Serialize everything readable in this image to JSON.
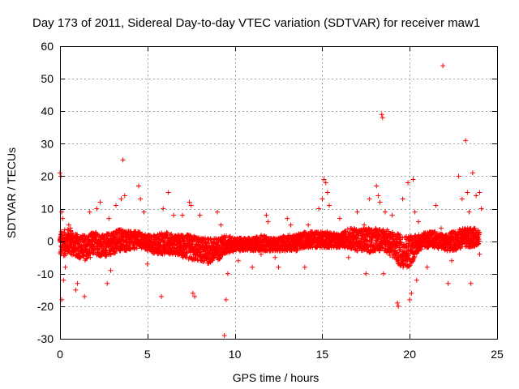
{
  "chart_data": {
    "type": "scatter",
    "title": "Day 173 of 2011, Sidereal Day-to-day VTEC variation (SDTVAR) for receiver maw1",
    "xlabel": "GPS time / hours",
    "ylabel": "SDTVAR / TECUs",
    "xlim": [
      0,
      25
    ],
    "ylim": [
      -30,
      60
    ],
    "xticks": [
      0,
      5,
      10,
      15,
      20,
      25
    ],
    "yticks": [
      -30,
      -20,
      -10,
      0,
      10,
      20,
      30,
      40,
      50,
      60
    ],
    "grid": true,
    "marker": "+",
    "color": "#ff0000",
    "series": [
      {
        "name": "SDTVAR",
        "dense_band": [
          [
            0.0,
            -5,
            3
          ],
          [
            0.5,
            -4,
            4
          ],
          [
            1.0,
            -5,
            2
          ],
          [
            1.5,
            -6,
            2
          ],
          [
            2.0,
            -4,
            3
          ],
          [
            2.5,
            -5,
            2
          ],
          [
            3.0,
            -4,
            3
          ],
          [
            3.5,
            -3,
            4
          ],
          [
            4.0,
            -3,
            3
          ],
          [
            4.5,
            -2,
            3
          ],
          [
            5.0,
            -3,
            2
          ],
          [
            5.5,
            -4,
            2
          ],
          [
            6.0,
            -4,
            3
          ],
          [
            6.5,
            -4,
            2
          ],
          [
            7.0,
            -5,
            2
          ],
          [
            7.5,
            -6,
            2
          ],
          [
            8.0,
            -6,
            1
          ],
          [
            8.5,
            -7,
            1
          ],
          [
            9.0,
            -6,
            1
          ],
          [
            9.5,
            -4,
            2
          ],
          [
            10.0,
            -3,
            1
          ],
          [
            10.5,
            -3,
            1
          ],
          [
            11.0,
            -3,
            1
          ],
          [
            11.5,
            -3,
            2
          ],
          [
            12.0,
            -3,
            1
          ],
          [
            12.5,
            -3,
            1
          ],
          [
            13.0,
            -3,
            2
          ],
          [
            13.5,
            -3,
            2
          ],
          [
            14.0,
            -2,
            3
          ],
          [
            14.5,
            -2,
            3
          ],
          [
            15.0,
            -2,
            3
          ],
          [
            15.5,
            -2,
            3
          ],
          [
            16.0,
            -2,
            2
          ],
          [
            16.5,
            -2,
            4
          ],
          [
            17.0,
            -3,
            4
          ],
          [
            17.5,
            -4,
            4
          ],
          [
            18.0,
            -3,
            4
          ],
          [
            18.5,
            -3,
            4
          ],
          [
            19.0,
            -5,
            3
          ],
          [
            19.5,
            -8,
            2
          ],
          [
            20.0,
            -8,
            2
          ],
          [
            20.5,
            -3,
            2
          ],
          [
            21.0,
            -2,
            3
          ],
          [
            21.5,
            -2,
            3
          ],
          [
            22.0,
            -3,
            2
          ],
          [
            22.5,
            -3,
            3
          ],
          [
            23.0,
            -2,
            4
          ],
          [
            23.5,
            -2,
            4
          ],
          [
            24.0,
            -1,
            4
          ]
        ],
        "points": [
          [
            0.0,
            21
          ],
          [
            0.05,
            20
          ],
          [
            0.1,
            9
          ],
          [
            0.15,
            7
          ],
          [
            0.1,
            -18
          ],
          [
            0.2,
            -12
          ],
          [
            0.3,
            -8
          ],
          [
            0.5,
            5
          ],
          [
            0.6,
            4
          ],
          [
            0.9,
            -15
          ],
          [
            1.0,
            -13
          ],
          [
            1.4,
            -17
          ],
          [
            1.7,
            9
          ],
          [
            2.1,
            10
          ],
          [
            2.3,
            12
          ],
          [
            2.8,
            7
          ],
          [
            2.7,
            -13
          ],
          [
            2.9,
            -9
          ],
          [
            3.2,
            11
          ],
          [
            3.6,
            25
          ],
          [
            3.7,
            14
          ],
          [
            3.5,
            13
          ],
          [
            4.5,
            17
          ],
          [
            4.6,
            13
          ],
          [
            4.8,
            9
          ],
          [
            5.0,
            -7
          ],
          [
            5.8,
            -17
          ],
          [
            5.9,
            10
          ],
          [
            6.2,
            15
          ],
          [
            6.5,
            8
          ],
          [
            7.0,
            8
          ],
          [
            7.4,
            12
          ],
          [
            7.5,
            11
          ],
          [
            7.6,
            -16
          ],
          [
            7.7,
            -17
          ],
          [
            8.0,
            8
          ],
          [
            8.3,
            -4
          ],
          [
            9.0,
            9
          ],
          [
            9.2,
            5
          ],
          [
            9.4,
            -29
          ],
          [
            9.5,
            -18
          ],
          [
            9.6,
            -10
          ],
          [
            10.2,
            -6
          ],
          [
            11.0,
            -8
          ],
          [
            11.5,
            -4
          ],
          [
            11.8,
            8
          ],
          [
            11.9,
            6
          ],
          [
            12.3,
            -5
          ],
          [
            12.5,
            -8
          ],
          [
            13.0,
            7
          ],
          [
            13.2,
            5
          ],
          [
            13.5,
            -3
          ],
          [
            14.0,
            -8
          ],
          [
            14.2,
            5
          ],
          [
            14.8,
            10
          ],
          [
            15.0,
            13
          ],
          [
            15.1,
            19
          ],
          [
            15.2,
            18
          ],
          [
            15.3,
            15
          ],
          [
            15.4,
            11
          ],
          [
            16.0,
            7
          ],
          [
            16.5,
            -5
          ],
          [
            17.0,
            9
          ],
          [
            17.4,
            5
          ],
          [
            17.7,
            13
          ],
          [
            18.1,
            17
          ],
          [
            18.2,
            14
          ],
          [
            18.3,
            12
          ],
          [
            18.4,
            39
          ],
          [
            18.45,
            38
          ],
          [
            18.6,
            9
          ],
          [
            17.5,
            -10
          ],
          [
            18.5,
            -10
          ],
          [
            19.0,
            8
          ],
          [
            19.3,
            -19
          ],
          [
            19.35,
            -20
          ],
          [
            19.6,
            13
          ],
          [
            19.9,
            18
          ],
          [
            20.0,
            -18
          ],
          [
            20.1,
            -16
          ],
          [
            20.2,
            19
          ],
          [
            20.3,
            9
          ],
          [
            20.4,
            -12
          ],
          [
            20.5,
            6
          ],
          [
            21.0,
            -8
          ],
          [
            21.5,
            11
          ],
          [
            21.8,
            4
          ],
          [
            21.9,
            54
          ],
          [
            22.2,
            -13
          ],
          [
            22.4,
            -6
          ],
          [
            22.8,
            20
          ],
          [
            23.0,
            13
          ],
          [
            23.2,
            31
          ],
          [
            23.3,
            15
          ],
          [
            23.4,
            9
          ],
          [
            23.5,
            -13
          ],
          [
            23.6,
            21
          ],
          [
            23.8,
            14
          ],
          [
            24.0,
            15
          ],
          [
            24.1,
            10
          ],
          [
            24.0,
            -4
          ]
        ]
      }
    ]
  }
}
